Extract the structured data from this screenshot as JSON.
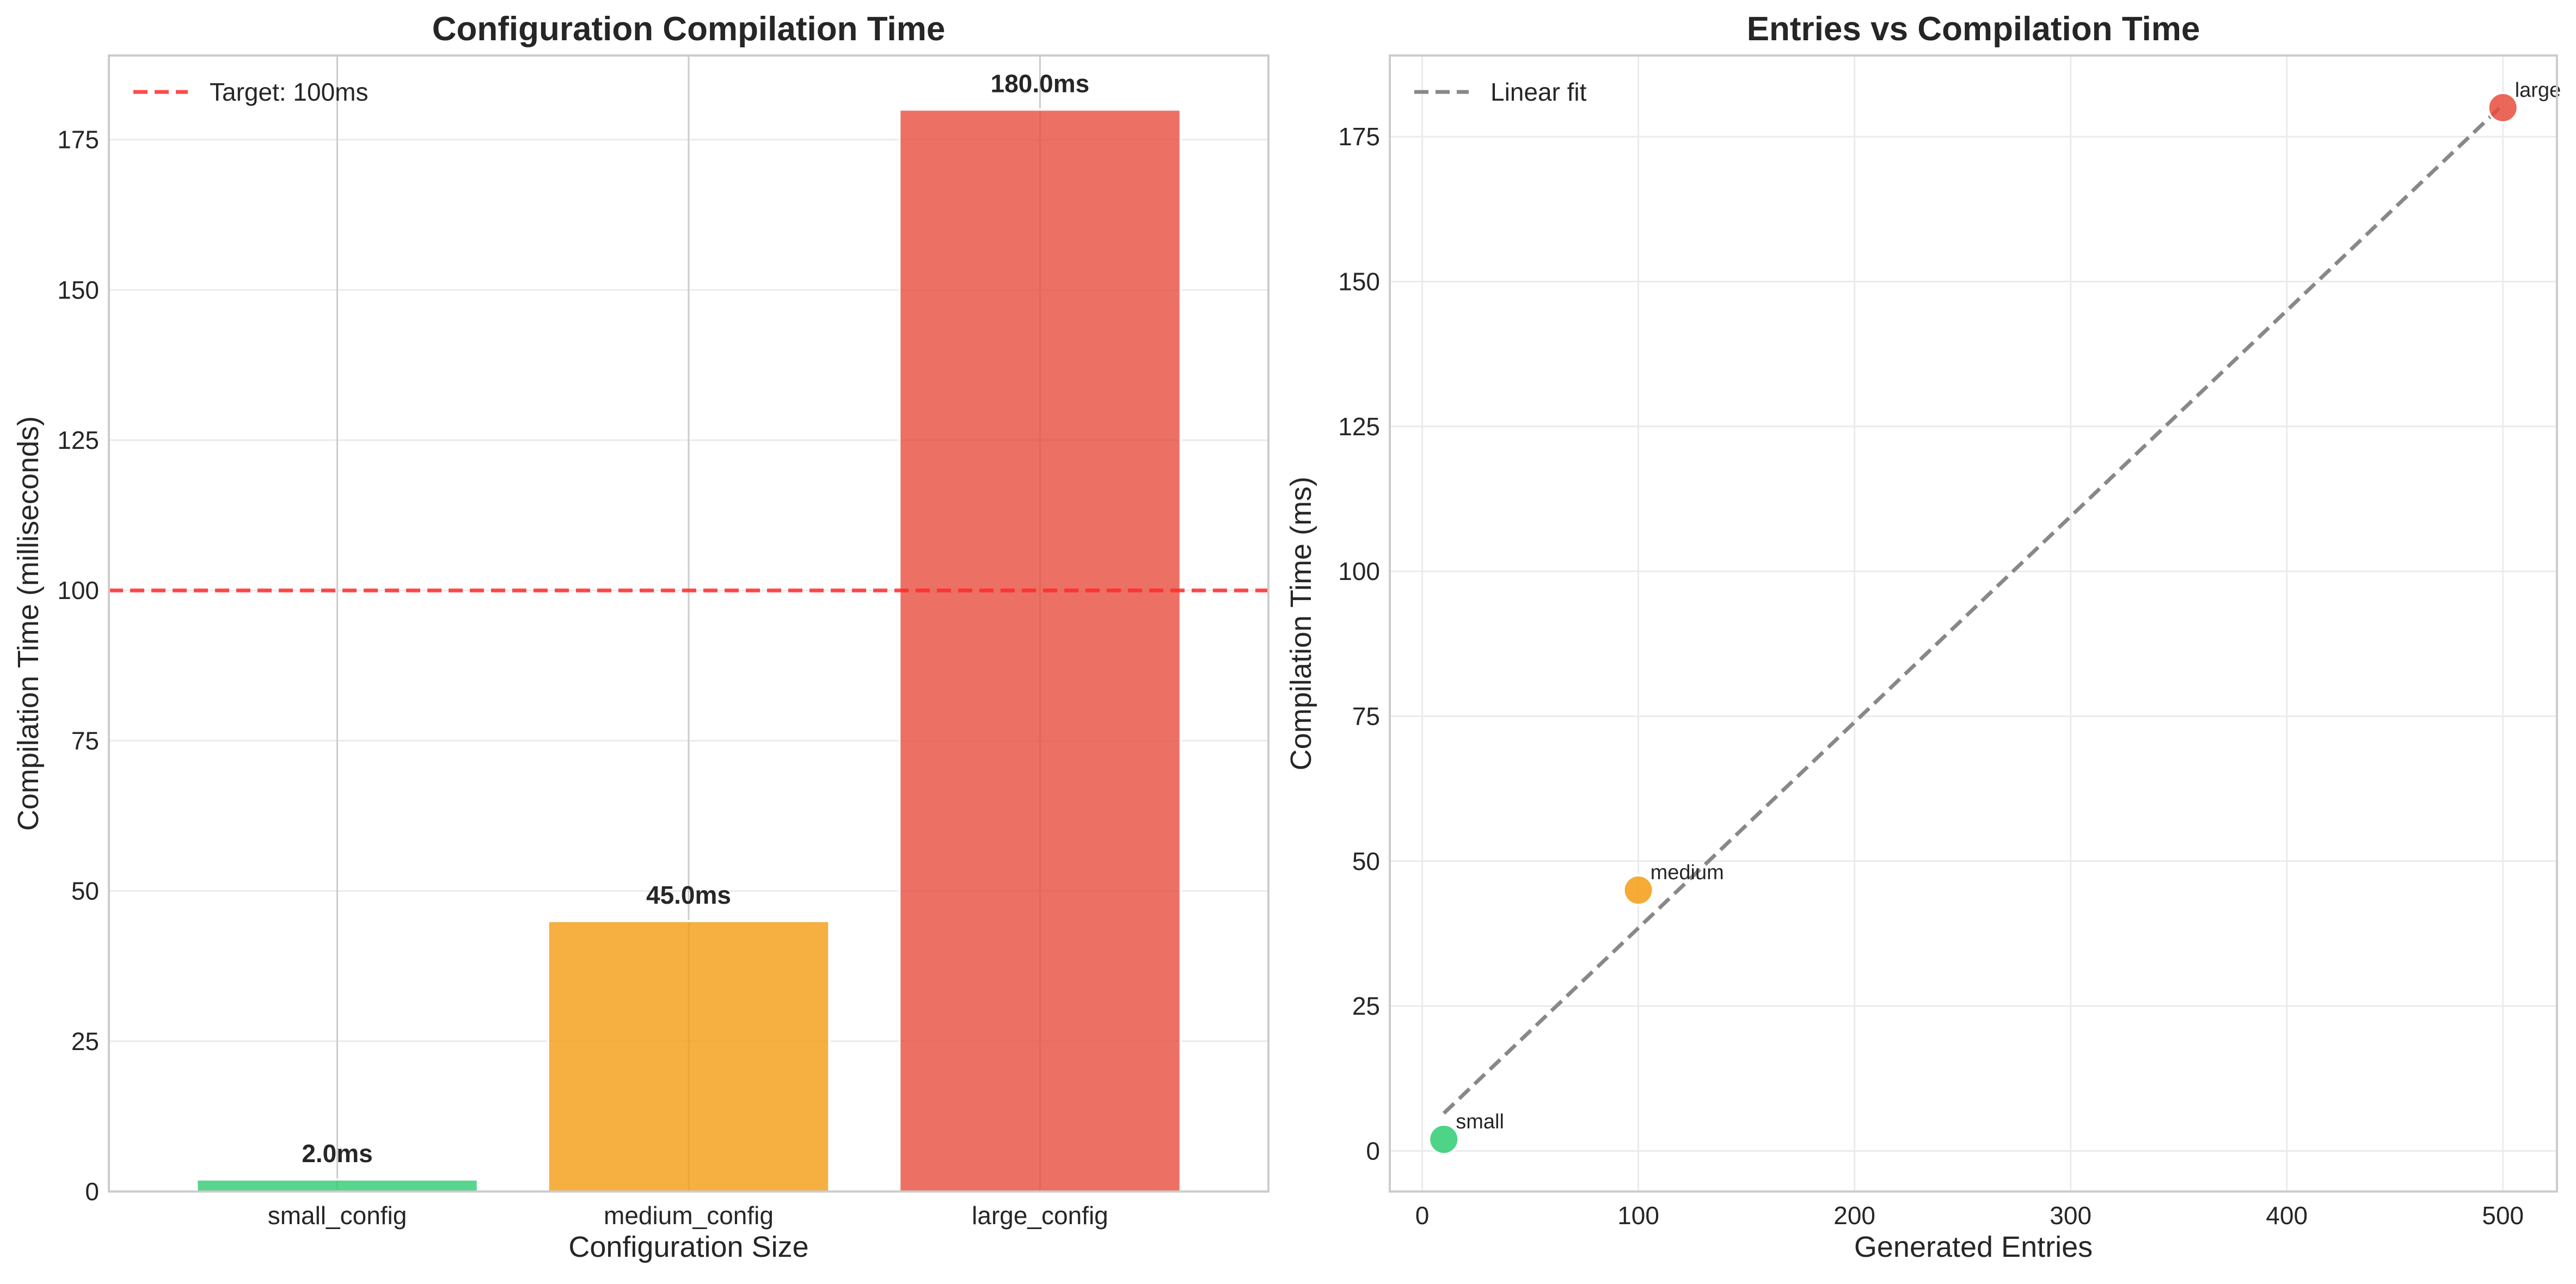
{
  "chart_data": [
    {
      "type": "bar",
      "title": "Configuration Compilation Time",
      "xlabel": "Configuration Size",
      "ylabel": "Compilation Time (milliseconds)",
      "categories": [
        "small_config",
        "medium_config",
        "large_config"
      ],
      "values": [
        2.0,
        45.0,
        180.0
      ],
      "value_labels": [
        "2.0ms",
        "45.0ms",
        "180.0ms"
      ],
      "colors": [
        "#2ecc71",
        "#f39c12",
        "#e74c3c"
      ],
      "ylim": [
        0,
        189
      ],
      "yticks": [
        0,
        25,
        50,
        75,
        100,
        125,
        150,
        175
      ],
      "grid": true,
      "reference_line": {
        "y": 100,
        "label": "Target: 100ms",
        "color": "#ff2a2a",
        "style": "dashed"
      },
      "legend": {
        "position": "top-left",
        "entries": [
          "Target: 100ms"
        ]
      }
    },
    {
      "type": "scatter",
      "title": "Entries vs Compilation Time",
      "xlabel": "Generated Entries",
      "ylabel": "Compilation Time (ms)",
      "points": [
        {
          "x": 10,
          "y": 2,
          "label": "small",
          "color": "#2ecc71"
        },
        {
          "x": 100,
          "y": 45,
          "label": "medium",
          "color": "#f39c12"
        },
        {
          "x": 500,
          "y": 180,
          "label": "large",
          "color": "#e74c3c"
        }
      ],
      "xlim": [
        -15,
        525
      ],
      "ylim": [
        -7,
        189
      ],
      "xticks": [
        0,
        100,
        200,
        300,
        400,
        500
      ],
      "yticks": [
        0,
        25,
        50,
        75,
        100,
        125,
        150,
        175
      ],
      "grid": true,
      "fit_line": {
        "label": "Linear fit",
        "x": [
          10,
          500
        ],
        "y": [
          6.5,
          180.5
        ],
        "color": "#888888",
        "style": "dashed"
      },
      "legend": {
        "position": "top-left",
        "entries": [
          "Linear fit"
        ]
      }
    }
  ]
}
